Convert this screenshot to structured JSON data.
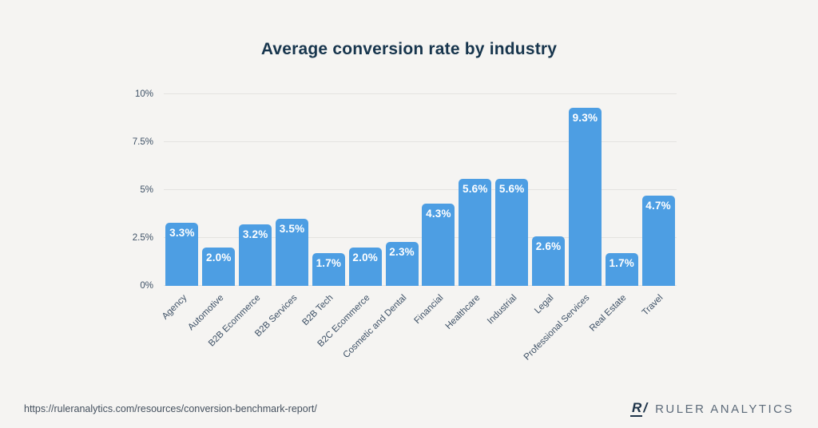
{
  "title": "Average conversion rate by industry",
  "colors": {
    "background": "#f5f4f2",
    "bar": "#4d9ee3",
    "title_text": "#17354d",
    "axis_label": "#3e5166",
    "gridline": "#e4e3e0",
    "value_label": "#ffffff",
    "footer_text": "#44505e",
    "brand_text": "#5d6b7a",
    "logo": "#1d3349"
  },
  "chart_data": {
    "type": "bar",
    "title": "Average conversion rate by industry",
    "categories": [
      "Agency",
      "Automotive",
      "B2B Ecommerce",
      "B2B Services",
      "B2B Tech",
      "B2C Ecommerce",
      "Cosmetic and Dental",
      "Financial",
      "Healthcare",
      "Industrial",
      "Legal",
      "Professional Services",
      "Real Estate",
      "Travel"
    ],
    "values": [
      3.3,
      2.0,
      3.2,
      3.5,
      1.7,
      2.0,
      2.3,
      4.3,
      5.6,
      5.6,
      2.6,
      9.3,
      1.7,
      4.7
    ],
    "value_labels": [
      "3.3%",
      "2.0%",
      "3.2%",
      "3.5%",
      "1.7%",
      "2.0%",
      "2.3%",
      "4.3%",
      "5.6%",
      "5.6%",
      "2.6%",
      "9.3%",
      "1.7%",
      "4.7%"
    ],
    "xlabel": "",
    "ylabel": "",
    "ylim": [
      0,
      10
    ],
    "yticks": [
      0,
      2.5,
      5,
      7.5,
      10
    ],
    "ytick_labels": [
      "0%",
      "2.5%",
      "5%",
      "7.5%",
      "10%"
    ],
    "grid": true,
    "legend": false
  },
  "footer": {
    "url": "https://ruleranalytics.com/resources/conversion-benchmark-report/",
    "logo_r": "R",
    "logo_slash": "/",
    "brand": "RULER ANALYTICS"
  }
}
